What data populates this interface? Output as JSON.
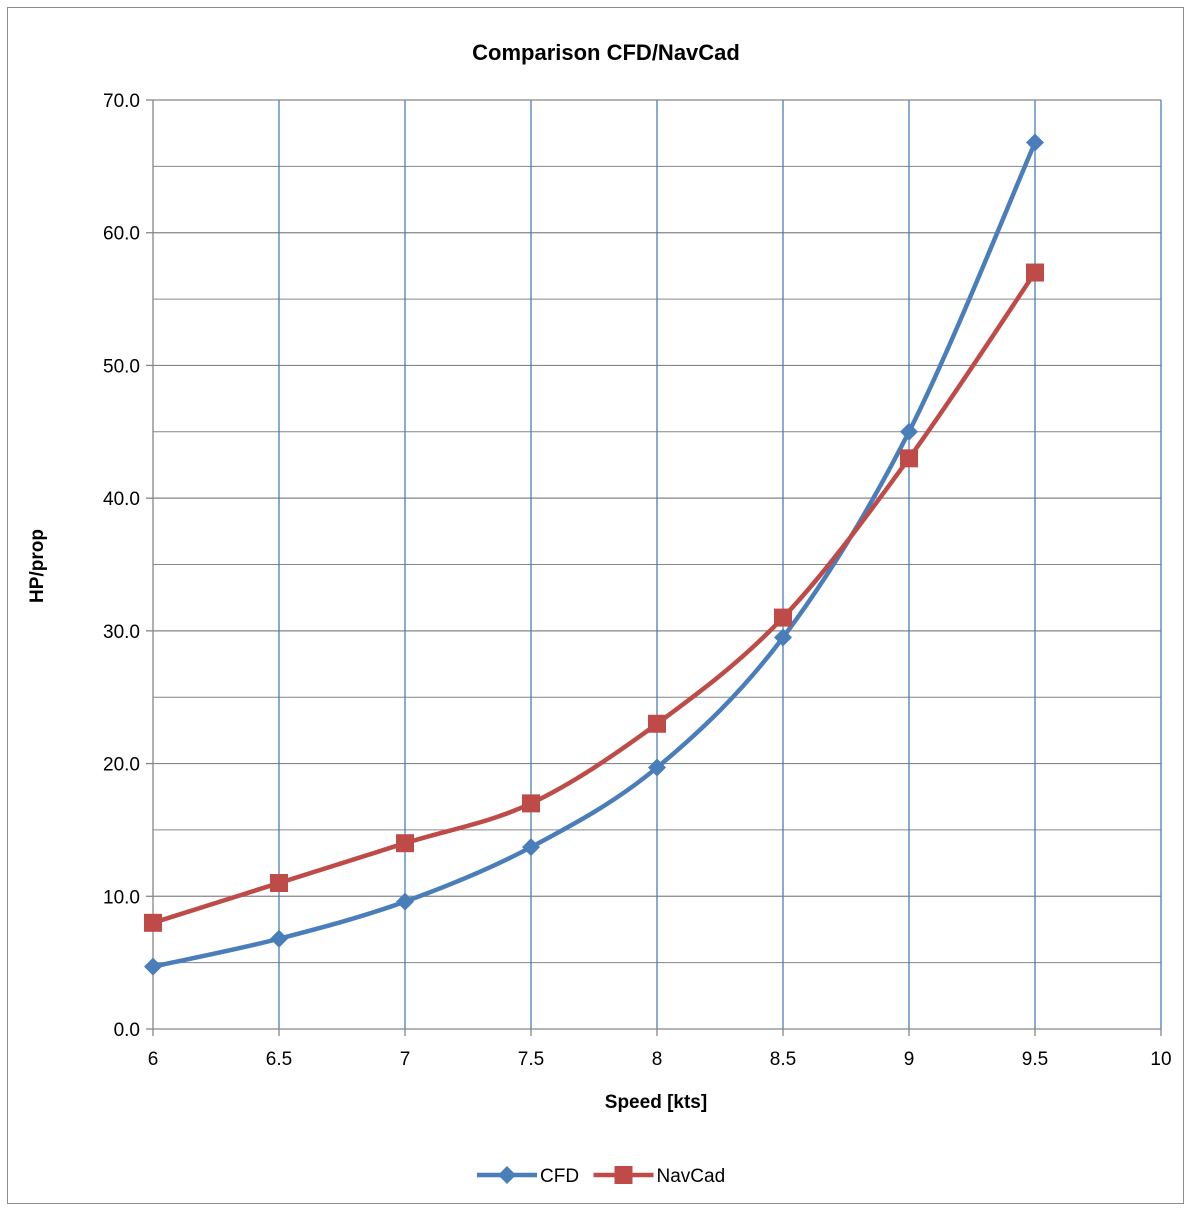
{
  "chart_data": {
    "type": "line",
    "title": "Comparison CFD/NavCad",
    "xlabel": "Speed [kts]",
    "ylabel": "HP/prop",
    "xlim": [
      6,
      10
    ],
    "ylim": [
      0,
      70
    ],
    "x_ticks": [
      "6",
      "6.5",
      "7",
      "7.5",
      "8",
      "8.5",
      "9",
      "9.5",
      "10"
    ],
    "y_ticks": [
      "0.0",
      "10.0",
      "20.0",
      "30.0",
      "40.0",
      "50.0",
      "60.0",
      "70.0"
    ],
    "grid": "major horizontal, vertical and minor horizontal",
    "legend_position": "bottom",
    "series": [
      {
        "name": "CFD",
        "color": "#4a7ebb",
        "marker": "diamond",
        "x": [
          6,
          6.5,
          7,
          7.5,
          8,
          8.5,
          9,
          9.5
        ],
        "y": [
          4.7,
          6.8,
          9.6,
          13.7,
          19.7,
          29.5,
          45.0,
          66.8
        ]
      },
      {
        "name": "NavCad",
        "color": "#be4b48",
        "marker": "square",
        "x": [
          6,
          6.5,
          7,
          7.5,
          8,
          8.5,
          9,
          9.5
        ],
        "y": [
          8.0,
          11.0,
          14.0,
          17.0,
          23.0,
          31.0,
          43.0,
          57.0
        ]
      }
    ]
  }
}
